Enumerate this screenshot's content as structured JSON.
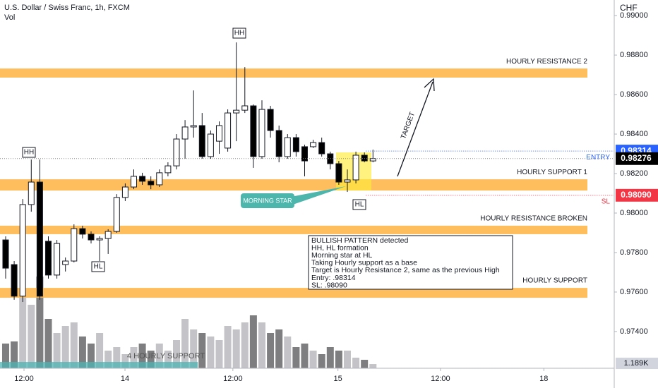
{
  "chart_data": {
    "type": "candlestick",
    "title": "U.S. Dollar / Swiss Franc, 1h, FXCM",
    "volume_title": "Vol",
    "axis_unit": "CHF",
    "up_color": "#ffffff",
    "down_color": "#000000",
    "vol_up_color": "#c4c4c8",
    "vol_down_color": "#7e7e80",
    "open": [
      0.97864,
      0.97739,
      0.97579,
      0.98043,
      0.98157,
      0.97857,
      0.97686,
      0.97739,
      0.97757,
      0.97921,
      0.97893,
      0.97864,
      0.97871,
      0.97907,
      0.98079,
      0.98132,
      0.98186,
      0.98161,
      0.98143,
      0.98204,
      0.98239,
      0.98375,
      0.98436,
      0.98443,
      0.98286,
      0.98364,
      0.98329,
      0.98507,
      0.98521,
      0.98543,
      0.98286,
      0.98525,
      0.98418,
      0.98286,
      0.98382,
      0.98336,
      0.98336,
      0.98357,
      0.983,
      0.9825,
      0.98157,
      0.98168,
      0.98293,
      0.98264
    ],
    "high": [
      0.97882,
      0.97757,
      0.98071,
      0.98271,
      0.98271,
      0.97882,
      0.97864,
      0.97775,
      0.97943,
      0.97936,
      0.97907,
      0.97882,
      0.97918,
      0.98096,
      0.9815,
      0.98221,
      0.98204,
      0.98186,
      0.98221,
      0.98257,
      0.984,
      0.98471,
      0.98621,
      0.98507,
      0.98418,
      0.98464,
      0.98525,
      0.98864,
      0.98739,
      0.9855,
      0.98571,
      0.98543,
      0.98443,
      0.984,
      0.984,
      0.98346,
      0.98371,
      0.98382,
      0.98311,
      0.98264,
      0.98221,
      0.98311,
      0.98307,
      0.98321
    ],
    "low": [
      0.97668,
      0.97561,
      0.9755,
      0.98007,
      0.97561,
      0.97668,
      0.97668,
      0.97704,
      0.9775,
      0.97871,
      0.97846,
      0.97757,
      0.97793,
      0.979,
      0.98061,
      0.98121,
      0.98143,
      0.98121,
      0.98132,
      0.98186,
      0.98221,
      0.98275,
      0.98382,
      0.98275,
      0.98275,
      0.983,
      0.98311,
      0.98364,
      0.98507,
      0.98229,
      0.98275,
      0.98382,
      0.98257,
      0.98275,
      0.98286,
      0.98186,
      0.98329,
      0.98286,
      0.98221,
      0.98143,
      0.98107,
      0.9815,
      0.98257,
      0.98257
    ],
    "close": [
      0.97721,
      0.97579,
      0.98043,
      0.98157,
      0.97579,
      0.97686,
      0.97846,
      0.97757,
      0.97921,
      0.97893,
      0.97864,
      0.97871,
      0.97907,
      0.98079,
      0.98132,
      0.98186,
      0.98161,
      0.98143,
      0.98204,
      0.98239,
      0.98375,
      0.98436,
      0.98443,
      0.98286,
      0.984,
      0.98443,
      0.98507,
      0.98521,
      0.98543,
      0.98286,
      0.98525,
      0.98418,
      0.98286,
      0.98382,
      0.98311,
      0.98264,
      0.98357,
      0.983,
      0.9825,
      0.98157,
      0.98168,
      0.98293,
      0.98264,
      0.98276
    ],
    "volume": [
      7.0,
      7.6,
      20,
      18,
      26,
      14,
      10,
      12,
      13,
      9,
      7,
      10,
      5,
      6,
      4,
      6,
      7,
      5,
      7,
      5,
      8,
      14,
      11,
      10,
      9,
      8,
      12,
      11,
      13,
      15,
      13,
      10,
      11,
      9,
      6,
      7,
      5,
      4,
      6,
      5,
      5,
      3,
      2.4,
      1.189
    ],
    "volume_last_label": "1.189K",
    "vlim": [
      0,
      104.4
    ],
    "xlim": [
      -0.66,
      71.24
    ],
    "xticks": [
      {
        "value": 2.15,
        "label": "12:00"
      },
      {
        "value": 13.97,
        "label": "14"
      },
      {
        "value": 26.6,
        "label": "12:00"
      },
      {
        "value": 38.9,
        "label": "15"
      },
      {
        "value": 50.9,
        "label": "12:00"
      },
      {
        "value": 63.0,
        "label": "18"
      }
    ],
    "ylim": [
      0.97214,
      0.99079
    ],
    "yticks": [
      {
        "value": 0.99,
        "label": "0.99000"
      },
      {
        "value": 0.988,
        "label": "0.98800"
      },
      {
        "value": 0.986,
        "label": "0.98600"
      },
      {
        "value": 0.984,
        "label": "0.98400"
      },
      {
        "value": 0.982,
        "label": "0.98200"
      },
      {
        "value": 0.98,
        "label": "0.98000"
      },
      {
        "value": 0.978,
        "label": "0.97800"
      },
      {
        "value": 0.976,
        "label": "0.97600"
      },
      {
        "value": 0.974,
        "label": "0.97400"
      }
    ],
    "zones": [
      {
        "label": "HOURLY RESISTANCE 2",
        "top": 0.98732,
        "bottom": 0.98686,
        "color": "#ffb74d"
      },
      {
        "label": "HOURLY SUPPORT 1",
        "top": 0.98171,
        "bottom": 0.98114,
        "color": "#ffb74d"
      },
      {
        "label": "HOURLY RESISTANCE BROKEN",
        "top": 0.97936,
        "bottom": 0.97893,
        "color": "#ffb74d"
      },
      {
        "label": "HOURLY SUPPORT",
        "top": 0.97621,
        "bottom": 0.97571,
        "color": "#ffb74d"
      },
      {
        "label": "4 HOURLY SUPPORT",
        "top": 0.97246,
        "bottom": 0.97214,
        "color": "#4fb3b3",
        "x_end": 22.5
      }
    ],
    "price_labels": [
      {
        "name": "ENTRY",
        "value": 0.98314,
        "label": "0.98314",
        "color": "#2962ff"
      },
      {
        "value": 0.98276,
        "label": "0.98276",
        "color": "#000000"
      },
      {
        "name": "SL",
        "value": 0.9809,
        "label": "0.98090",
        "color": "#f23645"
      }
    ],
    "markers": [
      "HH",
      "HH",
      "HL",
      "HL"
    ],
    "callout": "MORNING STAR",
    "arrow_label": "TARGET",
    "note": [
      "BULLISH PATTERN detected",
      "HH, HL formation",
      "Morning star at HL",
      "Taking Hourly support as a base",
      "Target is Hourly Resistance 2, same as the previous High",
      "Entry: .98314",
      "SL: .98090"
    ]
  }
}
